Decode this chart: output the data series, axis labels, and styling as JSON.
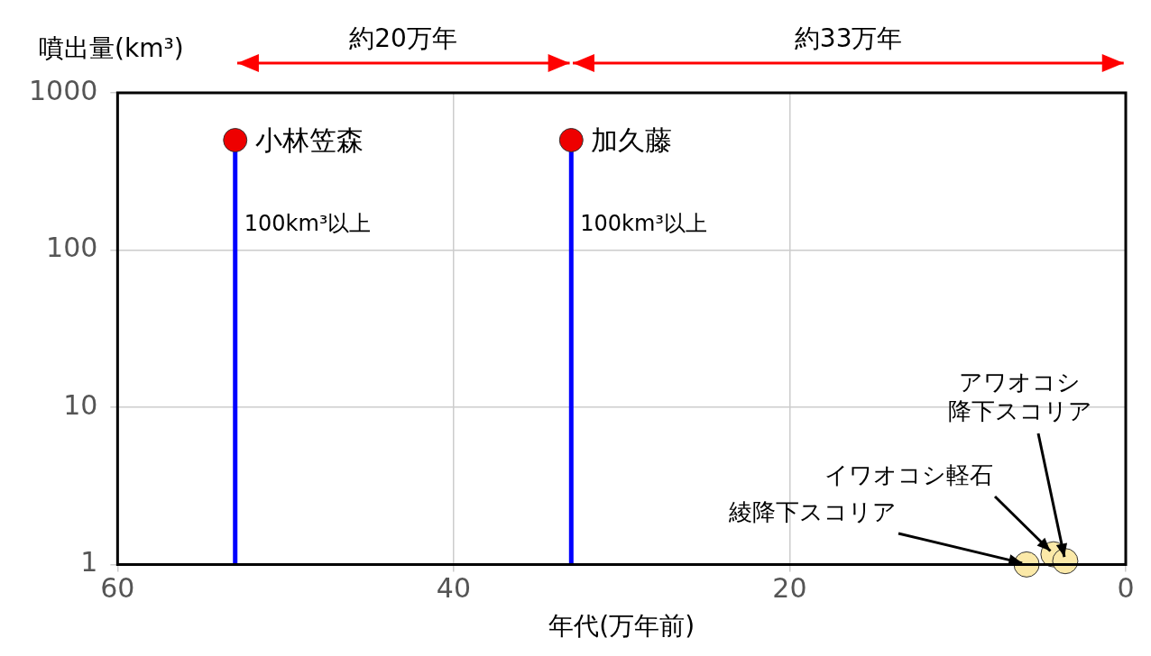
{
  "chart_data": {
    "type": "scatter",
    "ylabel": "噴出量(km³)",
    "xlabel": "年代(万年前)",
    "xlim": [
      60,
      0
    ],
    "xticks": [
      60,
      40,
      20,
      0
    ],
    "ylim": [
      1,
      1000
    ],
    "yticks": [
      1,
      10,
      100,
      1000
    ],
    "log": "y",
    "grid": true,
    "legend": false,
    "marker": "circle",
    "series": [
      {
        "type": "lollipop",
        "color": "#ee0000",
        "x": [
          53,
          33
        ],
        "values": [
          500,
          500
        ]
      },
      {
        "type": "scatter",
        "color": "#fbe9a8",
        "x": [
          5.9,
          4.3,
          3.6
        ],
        "values": [
          1.0,
          1.16,
          1.05
        ]
      }
    ],
    "annotations": [
      "約20万年",
      "約33万年",
      {
        "text": "小林笠森",
        "x": 53,
        "y": 500
      },
      {
        "text": "加久藤",
        "x": 33,
        "y": 500
      },
      "100km³以上",
      "100km³以上",
      {
        "text": "綾降下スコリア",
        "x": 5.9,
        "y": 1.0
      },
      {
        "text": "イワオコシ軽石",
        "x": 4.3,
        "y": 1.16
      },
      {
        "text": "アワオコシ降下スコリア",
        "x": 3.6,
        "y": 1.05
      }
    ]
  }
}
